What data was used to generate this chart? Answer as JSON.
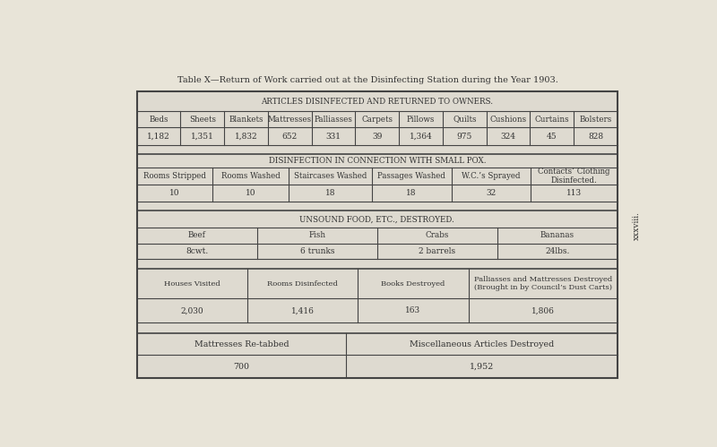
{
  "title": "Table X—Return of Work carried out at the Disinfecting Station during the Year 1903.",
  "bg_color": "#e8e4d8",
  "table_bg": "#dedad0",
  "border_color": "#444444",
  "text_color": "#333333",
  "side_text": "xxxviii.",
  "section1_header": "ARTICLES DISINFECTED AND RETURNED TO OWNERS.",
  "section1_cols": [
    "Beds",
    "Sheets",
    "Blankets",
    "Mattresses",
    "Palliasses",
    "Carpets",
    "Pillows",
    "Quilts",
    "Cushions",
    "Curtains",
    "Bolsters"
  ],
  "section1_vals": [
    "1,182",
    "1,351",
    "1,832",
    "652",
    "331",
    "39",
    "1,364",
    "975",
    "324",
    "45",
    "828"
  ],
  "section2_header": "DISINFECTION IN CONNECTION WITH SMALL POX.",
  "section2_cols": [
    "Rooms Stripped",
    "Rooms Washed",
    "Staircases Washed",
    "Passages Washed",
    "W.C.’s Sprayed",
    "Contacts’ Clothing\nDisinfected."
  ],
  "section2_vals": [
    "10",
    "10",
    "18",
    "18",
    "32",
    "113"
  ],
  "section3_header": "UNSOUND FOOD, ETC., DESTROYED.",
  "section3_cols": [
    "Beef",
    "Fish",
    "Crabs",
    "Bananas"
  ],
  "section3_vals": [
    "8cwt.",
    "6 trunks",
    "2 barrels",
    "24lbs."
  ],
  "section4_cols": [
    "Houses Visited",
    "Rooms Disinfected",
    "Books Destroyed",
    "Palliasses and Mattresses Destroyed\n(Brought in by Council’s Dust Carts)"
  ],
  "section4_vals": [
    "2,030",
    "1,416",
    "163",
    "1,806"
  ],
  "section5_cols": [
    "Mattresses Re-tabbed",
    "Miscellaneous Articles Destroyed"
  ],
  "section5_vals": [
    "700",
    "1,952"
  ]
}
